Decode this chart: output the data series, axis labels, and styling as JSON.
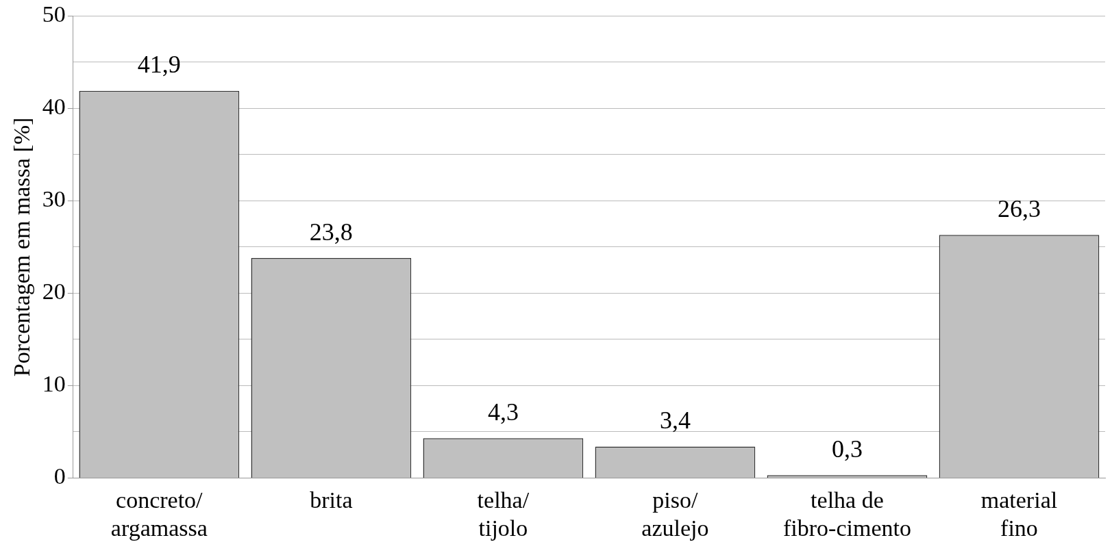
{
  "chart_data": {
    "type": "bar",
    "ylabel": "Porcentagem em massa [%]",
    "categories": [
      "concreto/ argamassa",
      "brita",
      "telha/ tijolo",
      "piso/ azulejo",
      "telha de fibro-cimento",
      "material fino"
    ],
    "values": [
      41.9,
      23.8,
      4.3,
      3.4,
      0.3,
      26.3
    ],
    "value_labels": [
      "41,9",
      "23,8",
      "4,3",
      "3,4",
      "0,3",
      "26,3"
    ],
    "color": "#c0c0c0",
    "ylim": [
      0,
      50
    ],
    "yticks": [
      0,
      {
        "value": 5,
        "label": null
      },
      10,
      {
        "value": 15,
        "label": null
      },
      20,
      {
        "value": 25,
        "label": null
      },
      30,
      {
        "value": 35,
        "label": null
      },
      40,
      {
        "value": 45,
        "label": null
      },
      50
    ],
    "grid": "y",
    "legend": false
  }
}
